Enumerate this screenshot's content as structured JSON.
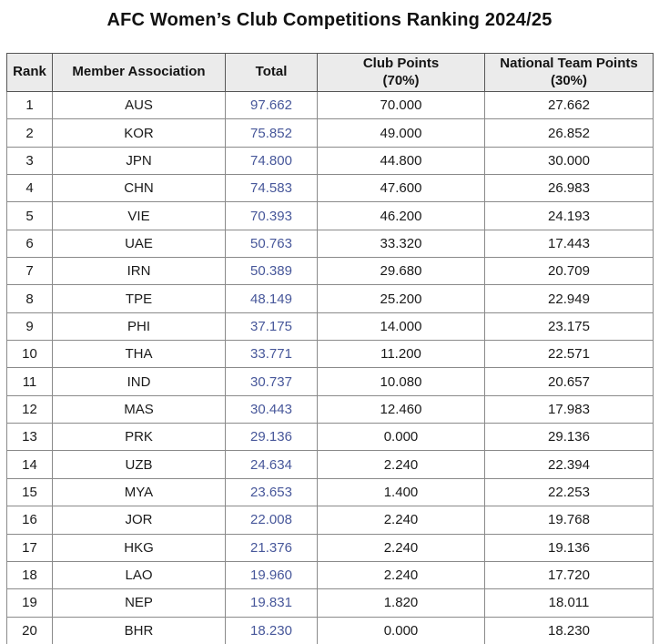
{
  "title": "AFC Women’s Club Competitions Ranking 2024/25",
  "colors": {
    "total_text": "#47579a",
    "header_bg": "#ebebeb",
    "body_border": "#8a8a8a",
    "header_border": "#565656",
    "text": "#171717"
  },
  "table": {
    "columns": [
      {
        "label": "Rank",
        "sub": ""
      },
      {
        "label": "Member Association",
        "sub": ""
      },
      {
        "label": "Total",
        "sub": ""
      },
      {
        "label": "Club Points",
        "sub": "(70%)"
      },
      {
        "label": "National Team Points",
        "sub": "(30%)"
      }
    ],
    "rows": [
      {
        "rank": "1",
        "association": "AUS",
        "total": "97.662",
        "club_points": "70.000",
        "national_team_points": "27.662"
      },
      {
        "rank": "2",
        "association": "KOR",
        "total": "75.852",
        "club_points": "49.000",
        "national_team_points": "26.852"
      },
      {
        "rank": "3",
        "association": "JPN",
        "total": "74.800",
        "club_points": "44.800",
        "national_team_points": "30.000"
      },
      {
        "rank": "4",
        "association": "CHN",
        "total": "74.583",
        "club_points": "47.600",
        "national_team_points": "26.983"
      },
      {
        "rank": "5",
        "association": "VIE",
        "total": "70.393",
        "club_points": "46.200",
        "national_team_points": "24.193"
      },
      {
        "rank": "6",
        "association": "UAE",
        "total": "50.763",
        "club_points": "33.320",
        "national_team_points": "17.443"
      },
      {
        "rank": "7",
        "association": "IRN",
        "total": "50.389",
        "club_points": "29.680",
        "national_team_points": "20.709"
      },
      {
        "rank": "8",
        "association": "TPE",
        "total": "48.149",
        "club_points": "25.200",
        "national_team_points": "22.949"
      },
      {
        "rank": "9",
        "association": "PHI",
        "total": "37.175",
        "club_points": "14.000",
        "national_team_points": "23.175"
      },
      {
        "rank": "10",
        "association": "THA",
        "total": "33.771",
        "club_points": "11.200",
        "national_team_points": "22.571"
      },
      {
        "rank": "11",
        "association": "IND",
        "total": "30.737",
        "club_points": "10.080",
        "national_team_points": "20.657"
      },
      {
        "rank": "12",
        "association": "MAS",
        "total": "30.443",
        "club_points": "12.460",
        "national_team_points": "17.983"
      },
      {
        "rank": "13",
        "association": "PRK",
        "total": "29.136",
        "club_points": "0.000",
        "national_team_points": "29.136"
      },
      {
        "rank": "14",
        "association": "UZB",
        "total": "24.634",
        "club_points": "2.240",
        "national_team_points": "22.394"
      },
      {
        "rank": "15",
        "association": "MYA",
        "total": "23.653",
        "club_points": "1.400",
        "national_team_points": "22.253"
      },
      {
        "rank": "16",
        "association": "JOR",
        "total": "22.008",
        "club_points": "2.240",
        "national_team_points": "19.768"
      },
      {
        "rank": "17",
        "association": "HKG",
        "total": "21.376",
        "club_points": "2.240",
        "national_team_points": "19.136"
      },
      {
        "rank": "18",
        "association": "LAO",
        "total": "19.960",
        "club_points": "2.240",
        "national_team_points": "17.720"
      },
      {
        "rank": "19",
        "association": "NEP",
        "total": "19.831",
        "club_points": "1.820",
        "national_team_points": "18.011"
      },
      {
        "rank": "20",
        "association": "BHR",
        "total": "18.230",
        "club_points": "0.000",
        "national_team_points": "18.230"
      }
    ]
  },
  "chart_data": {
    "type": "table",
    "title": "AFC Women’s Club Competitions Ranking 2024/25",
    "columns": [
      "Rank",
      "Member Association",
      "Total",
      "Club Points (70%)",
      "National Team Points (30%)"
    ],
    "categories": [
      "AUS",
      "KOR",
      "JPN",
      "CHN",
      "VIE",
      "UAE",
      "IRN",
      "TPE",
      "PHI",
      "THA",
      "IND",
      "MAS",
      "PRK",
      "UZB",
      "MYA",
      "JOR",
      "HKG",
      "LAO",
      "NEP",
      "BHR"
    ],
    "series": [
      {
        "name": "Total",
        "values": [
          97.662,
          75.852,
          74.8,
          74.583,
          70.393,
          50.763,
          50.389,
          48.149,
          37.175,
          33.771,
          30.737,
          30.443,
          29.136,
          24.634,
          23.653,
          22.008,
          21.376,
          19.96,
          19.831,
          18.23
        ]
      },
      {
        "name": "Club Points (70%)",
        "values": [
          70.0,
          49.0,
          44.8,
          47.6,
          46.2,
          33.32,
          29.68,
          25.2,
          14.0,
          11.2,
          10.08,
          12.46,
          0.0,
          2.24,
          1.4,
          2.24,
          2.24,
          2.24,
          1.82,
          0.0
        ]
      },
      {
        "name": "National Team Points (30%)",
        "values": [
          27.662,
          26.852,
          30.0,
          26.983,
          24.193,
          17.443,
          20.709,
          22.949,
          23.175,
          22.571,
          20.657,
          17.983,
          29.136,
          22.394,
          22.253,
          19.768,
          19.136,
          17.72,
          18.011,
          18.23
        ]
      }
    ]
  }
}
